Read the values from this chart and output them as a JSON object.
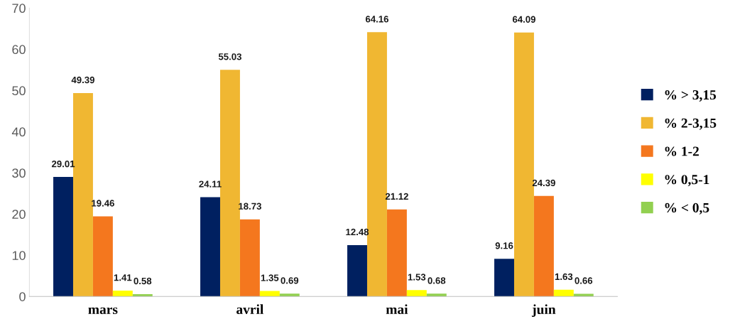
{
  "chart_data": {
    "type": "bar",
    "categories": [
      "mars",
      "avril",
      "mai",
      "juin"
    ],
    "series": [
      {
        "name": "% > 3,15",
        "color": "#002060",
        "values": [
          29.01,
          24.11,
          12.48,
          9.16
        ]
      },
      {
        "name": "% 2-3,15",
        "color": "#f0b732",
        "values": [
          49.39,
          55.03,
          64.16,
          64.09
        ]
      },
      {
        "name": "% 1-2",
        "color": "#f4771e",
        "values": [
          19.46,
          18.73,
          21.12,
          24.39
        ]
      },
      {
        "name": "% 0,5-1",
        "color": "#ffff00",
        "values": [
          1.41,
          1.35,
          1.53,
          1.63
        ]
      },
      {
        "name": "% < 0,5",
        "color": "#92d050",
        "values": [
          0.58,
          0.69,
          0.68,
          0.66
        ]
      }
    ],
    "ylim": [
      0,
      70
    ],
    "yticks": [
      0,
      10,
      20,
      30,
      40,
      50,
      60,
      70
    ],
    "data_labels": true,
    "legend": "right",
    "grid": false
  }
}
